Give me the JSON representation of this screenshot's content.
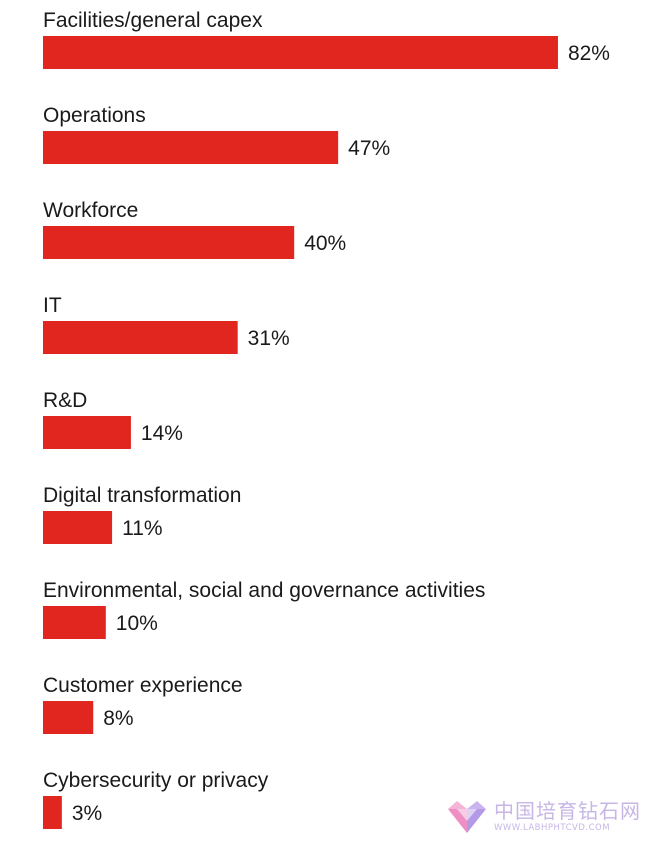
{
  "chart_data": {
    "type": "bar",
    "orientation": "horizontal",
    "categories": [
      "Facilities/general capex",
      "Operations",
      "Workforce",
      "IT",
      "R&D",
      "Digital transformation",
      "Environmental, social and governance activities",
      "Customer experience",
      "Cybersecurity or privacy"
    ],
    "values": [
      82,
      47,
      40,
      31,
      14,
      11,
      10,
      8,
      3
    ],
    "value_labels": [
      "82%",
      "47%",
      "40%",
      "31%",
      "14%",
      "11%",
      "10%",
      "8%",
      "3%"
    ],
    "bar_color": "#e0261f",
    "xlim": [
      0,
      100
    ],
    "grid": false
  },
  "watermark": {
    "text": "中国培育钻石网",
    "url": "WWW.LABHPHTCVD.COM",
    "logo": "diamond-logo-icon"
  }
}
